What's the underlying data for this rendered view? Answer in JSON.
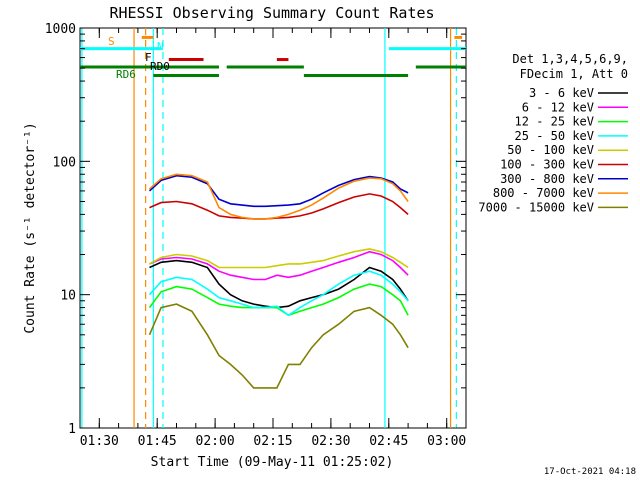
{
  "chart_data": {
    "type": "line",
    "title": "RHESSI Observing Summary Count Rates",
    "xlabel": "Start Time (09-May-11 01:25:02)",
    "ylabel": "Count Rate (s⁻¹ detector⁻¹)",
    "yscale": "log",
    "ylim": [
      1,
      1000
    ],
    "xlim_minutes": [
      85,
      185
    ],
    "x_tick_labels": [
      "01:30",
      "01:45",
      "02:00",
      "02:15",
      "02:30",
      "02:45",
      "03:00"
    ],
    "x_tick_minutes": [
      90,
      105,
      120,
      135,
      150,
      165,
      180
    ],
    "y_tick_labels": [
      "1",
      "10",
      "100",
      "1000"
    ],
    "y_tick_values": [
      1,
      10,
      100,
      1000
    ],
    "legend_header": [
      "Det 1,3,4,5,6,9,",
      "FDecim 1, Att 0"
    ],
    "legend_placement": "right",
    "timestamp": "17-Oct-2021 04:18",
    "x_units": "minutes after 00:00 UT on 09-May-11",
    "series": [
      {
        "name": "3 - 6 keV",
        "color": "#000000",
        "x": [
          103,
          106,
          110,
          114,
          118,
          121,
          124,
          127,
          130,
          133,
          136,
          139,
          142,
          145,
          148,
          152,
          156,
          160,
          163,
          166,
          168,
          170
        ],
        "y": [
          16,
          17.5,
          18,
          17.5,
          16,
          12,
          10,
          9,
          8.5,
          8.2,
          8,
          8.2,
          9,
          9.5,
          10,
          11,
          13,
          16,
          15,
          13,
          11,
          9
        ]
      },
      {
        "name": "6 - 12 keV",
        "color": "#ff00ff",
        "x": [
          103,
          106,
          110,
          114,
          118,
          121,
          124,
          127,
          130,
          133,
          136,
          139,
          142,
          145,
          148,
          152,
          156,
          160,
          163,
          166,
          168,
          170
        ],
        "y": [
          17,
          18.5,
          19,
          18.5,
          17,
          15,
          14,
          13.5,
          13,
          13,
          14,
          13.5,
          14,
          15,
          16,
          17.5,
          19,
          21,
          20,
          18,
          16,
          14
        ]
      },
      {
        "name": "12 - 25 keV",
        "color": "#00ff00",
        "x": [
          103,
          106,
          110,
          114,
          118,
          121,
          124,
          127,
          130,
          133,
          136,
          139,
          142,
          145,
          148,
          152,
          156,
          160,
          163,
          166,
          168,
          170
        ],
        "y": [
          8,
          10.5,
          11.5,
          11,
          9.5,
          8.5,
          8.2,
          8,
          8,
          8,
          8,
          7,
          7.5,
          8,
          8.5,
          9.5,
          11,
          12,
          11.5,
          10,
          9,
          7
        ]
      },
      {
        "name": "25 - 50 keV",
        "color": "#00ffff",
        "x": [
          103,
          106,
          110,
          114,
          118,
          121,
          124,
          127,
          130,
          133,
          136,
          139,
          142,
          145,
          148,
          152,
          156,
          160,
          163,
          166,
          168,
          170
        ],
        "y": [
          10,
          12.5,
          13.5,
          13,
          11,
          9.5,
          9,
          8.5,
          8,
          8,
          8.2,
          7,
          8,
          9,
          10,
          12,
          14,
          15,
          14,
          12,
          10.5,
          9
        ]
      },
      {
        "name": "50 - 100 keV",
        "color": "#cccc00",
        "x": [
          103,
          106,
          110,
          114,
          118,
          121,
          124,
          127,
          130,
          133,
          136,
          139,
          142,
          145,
          148,
          152,
          156,
          160,
          163,
          166,
          168,
          170
        ],
        "y": [
          17,
          19,
          20,
          19.5,
          18,
          16,
          16,
          16,
          16,
          16,
          16.5,
          17,
          17,
          17.5,
          18,
          19.5,
          21,
          22,
          21,
          19,
          17.5,
          16
        ]
      },
      {
        "name": "100 - 300 keV",
        "color": "#cc0000",
        "x": [
          103,
          106,
          110,
          114,
          118,
          121,
          124,
          127,
          130,
          133,
          136,
          139,
          142,
          145,
          148,
          152,
          156,
          160,
          163,
          166,
          168,
          170
        ],
        "y": [
          45,
          49,
          50,
          48,
          43,
          39,
          38,
          37.5,
          37,
          37,
          37.5,
          38,
          39,
          41,
          44,
          49,
          54,
          57,
          55,
          50,
          45,
          40
        ]
      },
      {
        "name": "300 - 800 keV",
        "color": "#0000cc",
        "x": [
          103,
          106,
          110,
          114,
          118,
          121,
          124,
          127,
          130,
          133,
          136,
          139,
          142,
          145,
          148,
          152,
          156,
          160,
          163,
          166,
          168,
          170
        ],
        "y": [
          60,
          72,
          78,
          76,
          68,
          52,
          48,
          47,
          46,
          46,
          46.5,
          47,
          48,
          52,
          58,
          66,
          73,
          77,
          75,
          70,
          62,
          58
        ]
      },
      {
        "name": "800 - 7000 keV",
        "color": "#ff8800",
        "x": [
          103,
          106,
          110,
          114,
          118,
          121,
          124,
          127,
          130,
          133,
          136,
          139,
          142,
          145,
          148,
          152,
          156,
          160,
          163,
          166,
          168,
          170
        ],
        "y": [
          62,
          74,
          80,
          78,
          70,
          45,
          40,
          38,
          37,
          37,
          38,
          40,
          43,
          47,
          53,
          63,
          71,
          75,
          74,
          68,
          60,
          50
        ]
      },
      {
        "name": "7000 - 15000 keV",
        "color": "#808000",
        "x": [
          103,
          106,
          110,
          114,
          118,
          121,
          124,
          127,
          130,
          133,
          136,
          139,
          142,
          145,
          148,
          152,
          156,
          160,
          163,
          166,
          168,
          170
        ],
        "y": [
          5,
          8,
          8.5,
          7.5,
          5,
          3.5,
          3,
          2.5,
          2,
          2,
          2,
          3,
          3,
          4,
          5,
          6,
          7.5,
          8,
          7,
          6,
          5,
          4
        ]
      }
    ],
    "bar_labels": [
      {
        "text": "S",
        "color": "#ff8800"
      },
      {
        "text": "N",
        "color": "#00ffff"
      },
      {
        "text": "F",
        "color": "#000000"
      },
      {
        "text": "RD0",
        "color": "#000000"
      },
      {
        "text": "RD6",
        "color": "#008000"
      }
    ],
    "bars": [
      {
        "color": "#00ffff",
        "level": 700,
        "x": [
          85,
          106
        ]
      },
      {
        "color": "#00ffff",
        "level": 700,
        "x": [
          165,
          185
        ]
      },
      {
        "color": "#ff8800",
        "level": 850,
        "x": [
          101,
          104
        ]
      },
      {
        "color": "#ff8800",
        "level": 850,
        "x": [
          182,
          184
        ]
      },
      {
        "color": "#cc0000",
        "level": 580,
        "x": [
          108,
          117
        ]
      },
      {
        "color": "#cc0000",
        "level": 580,
        "x": [
          136,
          139
        ]
      },
      {
        "color": "#008000",
        "level": 510,
        "x": [
          85,
          121
        ]
      },
      {
        "color": "#008000",
        "level": 510,
        "x": [
          123,
          143
        ]
      },
      {
        "color": "#008000",
        "level": 510,
        "x": [
          172,
          185
        ]
      },
      {
        "color": "#008000",
        "level": 440,
        "x": [
          104,
          121
        ]
      },
      {
        "color": "#008000",
        "level": 440,
        "x": [
          143,
          170
        ]
      }
    ],
    "vlines": [
      {
        "x": 85.5,
        "color": "#00ffff",
        "dash": false
      },
      {
        "x": 99,
        "color": "#ff8800",
        "dash": false
      },
      {
        "x": 102,
        "color": "#ff8800",
        "dash": true
      },
      {
        "x": 104,
        "color": "#00ffff",
        "dash": false
      },
      {
        "x": 106.5,
        "color": "#00ffff",
        "dash": true
      },
      {
        "x": 164,
        "color": "#00ffff",
        "dash": false
      },
      {
        "x": 181,
        "color": "#ff8800",
        "dash": false
      },
      {
        "x": 182.5,
        "color": "#00ffff",
        "dash": true
      }
    ]
  }
}
